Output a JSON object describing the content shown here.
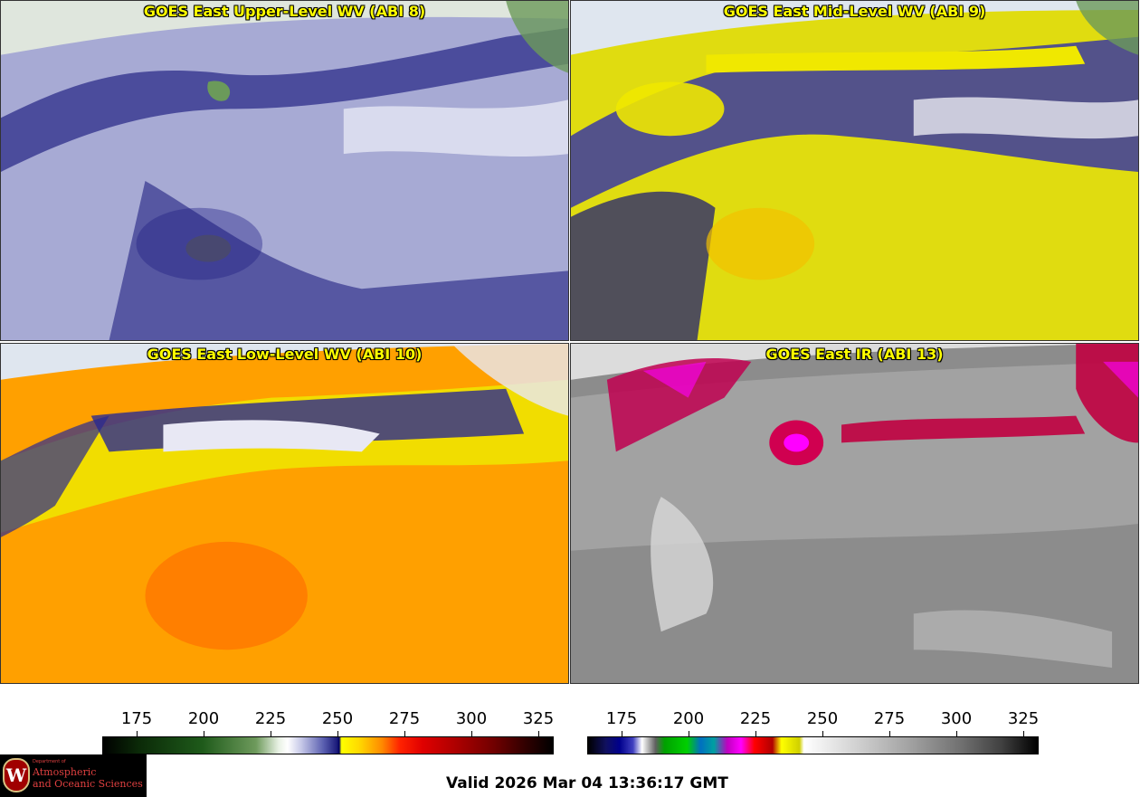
{
  "panels": [
    {
      "id": "upper",
      "title": "GOES East Upper-Level WV (ABI 8)",
      "palette": {
        "base": "#a9acd6",
        "dark": "#1a1a7a",
        "light": "#ffffff",
        "accent": "#6a9a55"
      }
    },
    {
      "id": "mid",
      "title": "GOES East Mid-Level WV (ABI 9)",
      "palette": {
        "base": "#e8e000",
        "dark": "#12127a",
        "light": "#ffffff",
        "accent": "#8a8ad0"
      }
    },
    {
      "id": "low",
      "title": "GOES East Low-Level WV (ABI 10)",
      "palette": {
        "base": "#ffa000",
        "dark": "#1a1a7a",
        "light": "#ffffff",
        "accent": "#ffe000"
      }
    },
    {
      "id": "ir",
      "title": "GOES East IR (ABI 13)",
      "palette": {
        "base": "#8a8a8a",
        "dark": "#555555",
        "light": "#e0e0e0",
        "accent": "#e00060"
      }
    }
  ],
  "colorbars": [
    {
      "id": "wv",
      "ticks": [
        "175",
        "200",
        "225",
        "250",
        "275",
        "300",
        "325"
      ]
    },
    {
      "id": "ir",
      "ticks": [
        "175",
        "200",
        "225",
        "250",
        "275",
        "300",
        "325"
      ]
    }
  ],
  "logo": {
    "dept": "Department of",
    "line1": "Atmospheric",
    "line2": "and Oceanic Sciences",
    "seal_letter": "W"
  },
  "footer": {
    "valid_text": "Valid 2026 Mar 04 13:36:17 GMT"
  },
  "colors": {
    "coastline": "#1a8a1a",
    "borders": "#8a4a10",
    "states": "#e02020",
    "title": "#ffff00"
  }
}
